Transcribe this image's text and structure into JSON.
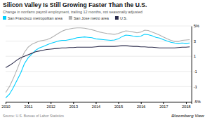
{
  "chart_data": {
    "type": "line",
    "title": "Silicon Valley Is Still Growing Faster Than the U.S.",
    "subtitle": "Change in nonfarm payroll employment, trailing 12 months, not seasonally adjusted",
    "annotations": [
      "Source: U.S. Bureau of Labor Statistics",
      "Bloomberg View"
    ],
    "x": [
      2010.0,
      2010.17,
      2010.33,
      2010.5,
      2010.67,
      2010.83,
      2011.0,
      2011.17,
      2011.33,
      2011.5,
      2011.67,
      2011.83,
      2012.0,
      2012.17,
      2012.33,
      2012.5,
      2012.67,
      2012.83,
      2013.0,
      2013.17,
      2013.33,
      2013.5,
      2013.67,
      2013.83,
      2014.0,
      2014.17,
      2014.33,
      2014.5,
      2014.67,
      2014.83,
      2015.0,
      2015.17,
      2015.33,
      2015.5,
      2015.67,
      2015.83,
      2016.0,
      2016.17,
      2016.33,
      2016.5,
      2016.67,
      2016.83,
      2017.0,
      2017.17,
      2017.33,
      2017.5,
      2017.67,
      2017.83,
      2018.0,
      2018.17
    ],
    "series": [
      {
        "name": "San Francisco metropolitan area",
        "color": "#00cfff",
        "values": [
          -4.5,
          -4.0,
          -3.2,
          -2.2,
          -1.2,
          0.0,
          0.8,
          1.3,
          1.8,
          2.1,
          2.3,
          2.5,
          2.7,
          2.85,
          3.0,
          3.1,
          3.1,
          3.2,
          3.3,
          3.45,
          3.5,
          3.55,
          3.5,
          3.45,
          3.3,
          3.25,
          3.2,
          3.15,
          3.1,
          3.15,
          3.3,
          3.6,
          3.8,
          3.75,
          3.65,
          3.6,
          3.65,
          3.9,
          3.85,
          3.7,
          3.5,
          3.4,
          3.2,
          3.0,
          2.85,
          2.75,
          2.7,
          2.75,
          2.7,
          2.75
        ]
      },
      {
        "name": "San Jose metro area",
        "color": "#b0b0b0",
        "values": [
          -3.8,
          -3.0,
          -2.0,
          -0.8,
          0.5,
          1.5,
          2.2,
          2.6,
          2.8,
          3.0,
          3.1,
          3.2,
          3.4,
          3.7,
          4.0,
          4.3,
          4.5,
          4.6,
          4.7,
          4.75,
          4.75,
          4.7,
          4.6,
          4.5,
          4.35,
          4.2,
          4.1,
          4.0,
          3.95,
          3.9,
          4.0,
          4.2,
          4.35,
          4.3,
          4.2,
          4.1,
          4.2,
          4.45,
          4.4,
          4.2,
          4.0,
          3.8,
          3.55,
          3.3,
          3.1,
          2.95,
          2.95,
          3.1,
          3.15,
          3.2
        ]
      },
      {
        "name": "U.S.",
        "color": "#2b2b4b",
        "values": [
          -0.5,
          -0.2,
          0.1,
          0.5,
          0.8,
          1.0,
          1.2,
          1.4,
          1.6,
          1.7,
          1.8,
          1.9,
          1.95,
          2.0,
          2.05,
          2.1,
          2.1,
          2.15,
          2.15,
          2.2,
          2.2,
          2.2,
          2.2,
          2.2,
          2.25,
          2.3,
          2.3,
          2.3,
          2.3,
          2.3,
          2.35,
          2.4,
          2.4,
          2.35,
          2.3,
          2.3,
          2.25,
          2.25,
          2.2,
          2.2,
          2.15,
          2.1,
          2.1,
          2.1,
          2.1,
          2.1,
          2.15,
          2.2,
          2.2,
          2.25
        ]
      }
    ],
    "xlim": [
      2010,
      2018.25
    ],
    "xticks": [
      2010,
      2011,
      2012,
      2013,
      2014,
      2015,
      2016,
      2017,
      2018
    ],
    "ylim": [
      -5,
      5
    ],
    "yticks": [
      {
        "value": -5,
        "label": "-5%"
      },
      -3,
      -1,
      1,
      3,
      {
        "value": 5,
        "label": "5%"
      }
    ],
    "grid": true,
    "legend": "top"
  }
}
